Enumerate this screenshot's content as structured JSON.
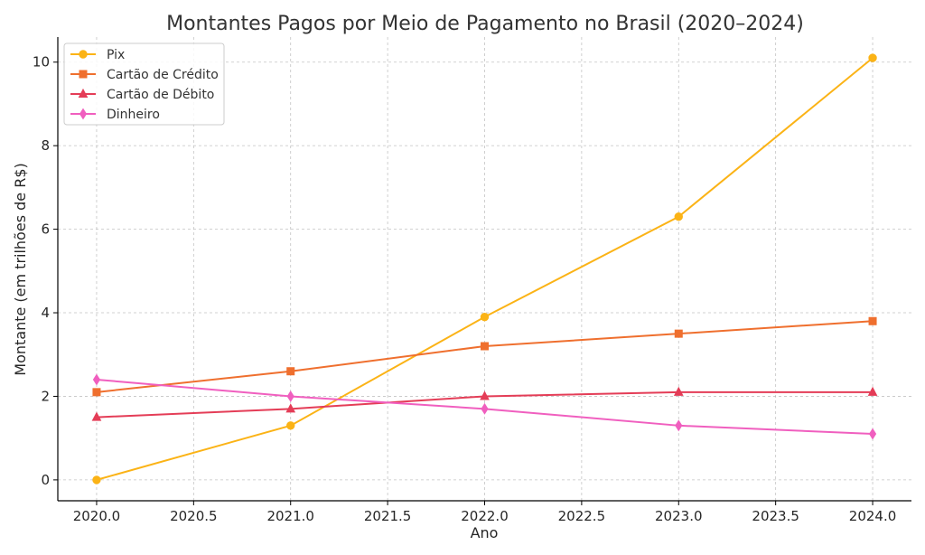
{
  "chart_data": {
    "type": "line",
    "title": "Montantes Pagos por Meio de Pagamento no Brasil (2020–2024)",
    "xlabel": "Ano",
    "ylabel": "Montante (em trilhões de R$)",
    "x": [
      2020,
      2021,
      2022,
      2023,
      2024
    ],
    "xlim": [
      2019.8,
      2024.2
    ],
    "ylim": [
      -0.5,
      10.6
    ],
    "xticks": [
      "2020.0",
      "2020.5",
      "2021.0",
      "2021.5",
      "2022.0",
      "2022.5",
      "2023.0",
      "2023.5",
      "2024.0"
    ],
    "yticks": [
      "0",
      "2",
      "4",
      "6",
      "8",
      "10"
    ],
    "grid": true,
    "legend_position": "top-left",
    "series": [
      {
        "name": "Pix",
        "values": [
          0.0,
          1.3,
          3.9,
          6.3,
          10.1
        ],
        "color": "#fbb316",
        "marker": "circle"
      },
      {
        "name": "Cartão de Crédito",
        "values": [
          2.1,
          2.6,
          3.2,
          3.5,
          3.8
        ],
        "color": "#ef6f2e",
        "marker": "square"
      },
      {
        "name": "Cartão de Débito",
        "values": [
          1.5,
          1.7,
          2.0,
          2.1,
          2.1
        ],
        "color": "#e43d57",
        "marker": "triangle"
      },
      {
        "name": "Dinheiro",
        "values": [
          2.4,
          2.0,
          1.7,
          1.3,
          1.1
        ],
        "color": "#f05fbf",
        "marker": "diamond"
      }
    ]
  }
}
